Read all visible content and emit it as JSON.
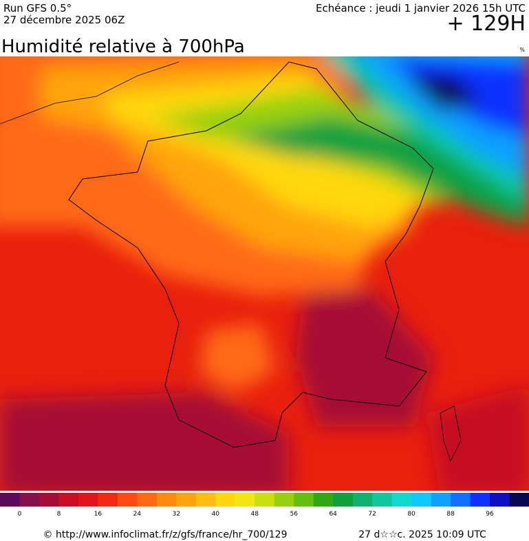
{
  "header": {
    "run": "Run GFS 0.5°",
    "run_date": "27 décembre 2025 06Z",
    "valid": "Echéance : jeudi 1 janvier 2026 15h UTC",
    "lead": "+ 129H"
  },
  "title": "Humidité relative à 700hPa",
  "unit": "%",
  "colorbar": {
    "labels": [
      0,
      8,
      16,
      24,
      32,
      40,
      48,
      56,
      64,
      72,
      80,
      88,
      96
    ],
    "colors": [
      "#5c0a5c",
      "#86104a",
      "#a60d36",
      "#c60f24",
      "#e0141a",
      "#f02a12",
      "#ff4a12",
      "#ff6a12",
      "#ff8a10",
      "#ffa410",
      "#ffbe10",
      "#ffd810",
      "#f0e810",
      "#c8e010",
      "#96d010",
      "#64c010",
      "#30a814",
      "#10a040",
      "#10b070",
      "#10c8a0",
      "#10d8d0",
      "#10c8ff",
      "#10a0ff",
      "#1070ff",
      "#1030ff",
      "#1010c0",
      "#080850"
    ]
  },
  "footer": {
    "url": "© http://www.infoclimat.fr/z/gfs/france/hr_700/129",
    "date": "27 d☆☆c. 2025 10:09 UTC"
  }
}
